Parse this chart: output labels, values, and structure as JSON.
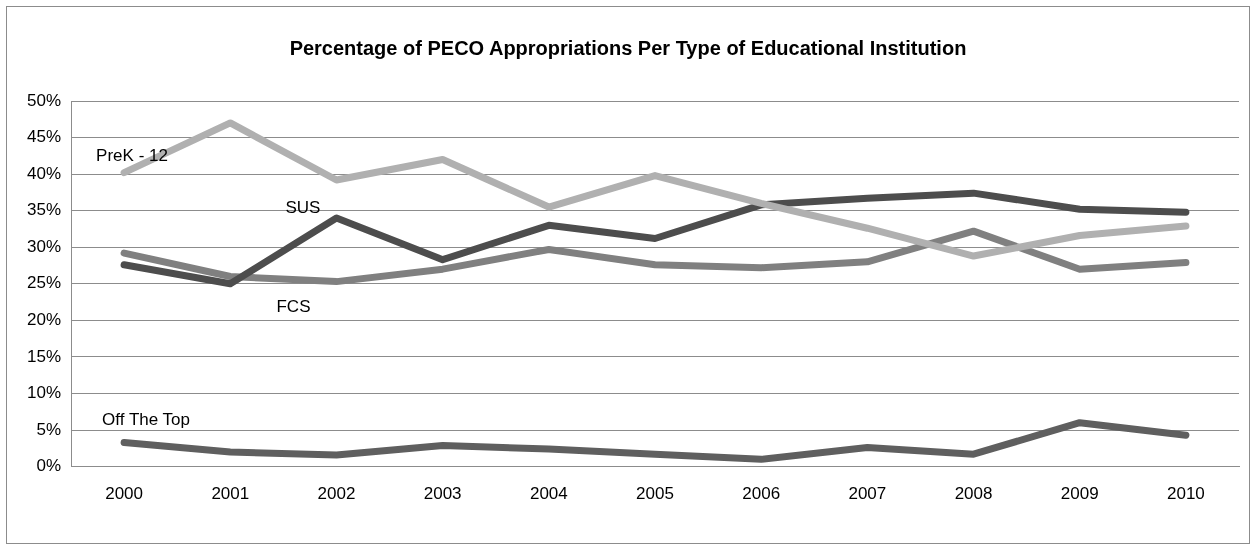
{
  "chart_data": {
    "type": "line",
    "title": "Percentage of PECO Appropriations  Per Type of Educational Institution",
    "categories": [
      "2000",
      "2001",
      "2002",
      "2003",
      "2004",
      "2005",
      "2006",
      "2007",
      "2008",
      "2009",
      "2010"
    ],
    "series": [
      {
        "name": "PreK - 12",
        "color": "#b0b0b0",
        "values": [
          40.2,
          47,
          39.2,
          42,
          35.5,
          39.8,
          36,
          32.6,
          28.8,
          31.6,
          32.9
        ]
      },
      {
        "name": "SUS",
        "color": "#4d4d4d",
        "values": [
          27.6,
          25,
          34,
          28.3,
          33,
          31.2,
          35.8,
          36.7,
          37.4,
          35.2,
          34.8
        ]
      },
      {
        "name": "FCS",
        "color": "#808080",
        "values": [
          29.2,
          26,
          25.3,
          27,
          29.7,
          27.6,
          27.2,
          28,
          32.2,
          27,
          27.9
        ]
      },
      {
        "name": "Off The Top",
        "color": "#5f5f5f",
        "values": [
          3.3,
          2,
          1.6,
          2.9,
          2.4,
          1.7,
          1,
          2.6,
          1.7,
          6,
          4.3
        ]
      }
    ],
    "ylim": [
      0,
      50
    ],
    "yticks": [
      {
        "value": 0,
        "label": "0%"
      },
      {
        "value": 5,
        "label": "5%"
      },
      {
        "value": 10,
        "label": "10%"
      },
      {
        "value": 15,
        "label": "15%"
      },
      {
        "value": 20,
        "label": "20%"
      },
      {
        "value": 25,
        "label": "25%"
      },
      {
        "value": 30,
        "label": "30%"
      },
      {
        "value": 35,
        "label": "35%"
      },
      {
        "value": 40,
        "label": "40%"
      },
      {
        "value": 45,
        "label": "45%"
      },
      {
        "value": 50,
        "label": "50%"
      }
    ],
    "grid": "y",
    "legend": false,
    "marker": "none",
    "line_style": "solid"
  }
}
